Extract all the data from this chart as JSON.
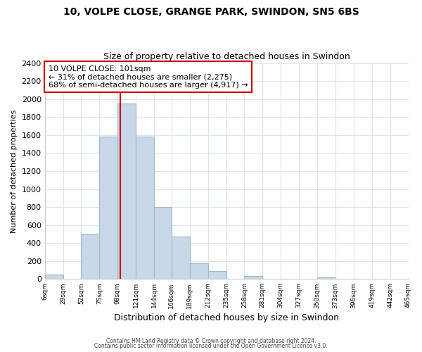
{
  "title": "10, VOLPE CLOSE, GRANGE PARK, SWINDON, SN5 6BS",
  "subtitle": "Size of property relative to detached houses in Swindon",
  "xlabel": "Distribution of detached houses by size in Swindon",
  "ylabel": "Number of detached properties",
  "bar_color": "#c8d8e8",
  "bar_edge_color": "#a0b8cc",
  "bin_labels": [
    "6sqm",
    "29sqm",
    "52sqm",
    "75sqm",
    "98sqm",
    "121sqm",
    "144sqm",
    "166sqm",
    "189sqm",
    "212sqm",
    "235sqm",
    "258sqm",
    "281sqm",
    "304sqm",
    "327sqm",
    "350sqm",
    "373sqm",
    "396sqm",
    "419sqm",
    "442sqm",
    "465sqm"
  ],
  "bin_edges": [
    6,
    29,
    52,
    75,
    98,
    121,
    144,
    166,
    189,
    212,
    235,
    258,
    281,
    304,
    327,
    350,
    373,
    396,
    419,
    442,
    465
  ],
  "bar_heights": [
    50,
    0,
    500,
    1580,
    1950,
    1580,
    800,
    470,
    175,
    90,
    0,
    35,
    0,
    0,
    0,
    20,
    0,
    0,
    0,
    0
  ],
  "ylim": [
    0,
    2400
  ],
  "yticks": [
    0,
    200,
    400,
    600,
    800,
    1000,
    1200,
    1400,
    1600,
    1800,
    2000,
    2200,
    2400
  ],
  "vline_x": 101,
  "vline_color": "#cc0000",
  "annotation_title": "10 VOLPE CLOSE: 101sqm",
  "annotation_line1": "← 31% of detached houses are smaller (2,275)",
  "annotation_line2": "68% of semi-detached houses are larger (4,917) →",
  "annotation_box_color": "#ffffff",
  "annotation_box_edge": "#cc0000",
  "footer1": "Contains HM Land Registry data © Crown copyright and database right 2024.",
  "footer2": "Contains public sector information licensed under the Open Government Licence v3.0.",
  "background_color": "#ffffff",
  "grid_color": "#d8e4f0"
}
